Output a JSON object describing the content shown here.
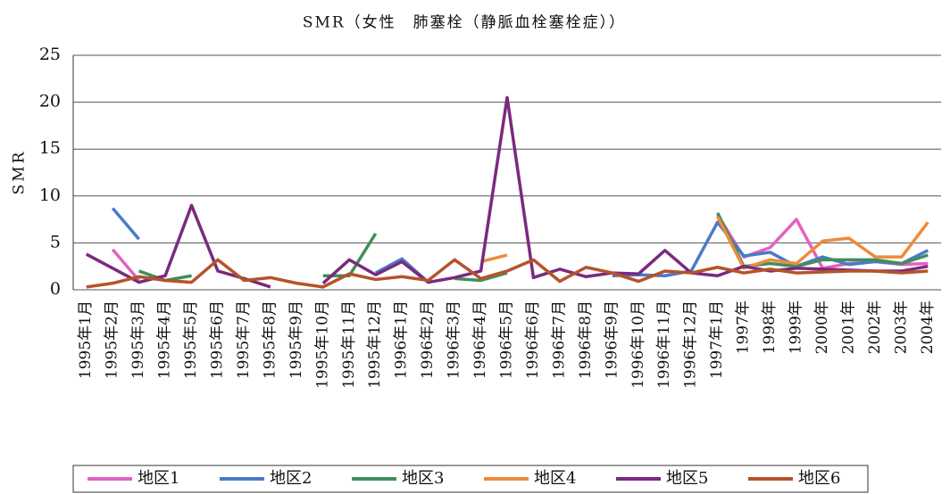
{
  "chart_data": {
    "type": "line",
    "title": "SMR（女性　肺塞栓（静脈血栓塞栓症））",
    "y_label": "SMR",
    "categories": [
      "1995年1月",
      "1995年2月",
      "1995年3月",
      "1995年4月",
      "1995年5月",
      "1995年6月",
      "1995年7月",
      "1995年8月",
      "1995年9月",
      "1995年10月",
      "1995年11月",
      "1995年12月",
      "1996年1月",
      "1996年2月",
      "1996年3月",
      "1996年4月",
      "1996年5月",
      "1996年6月",
      "1996年7月",
      "1996年8月",
      "1996年9月",
      "1996年10月",
      "1996年11月",
      "1996年12月",
      "1997年1月",
      "1997年",
      "1998年",
      "1999年",
      "2000年",
      "2001年",
      "2002年",
      "2003年",
      "2004年"
    ],
    "series": [
      {
        "name": "地区1",
        "color": "#e560c3",
        "values": [
          null,
          4.3,
          1.0,
          null,
          null,
          null,
          null,
          null,
          null,
          null,
          null,
          null,
          null,
          null,
          null,
          null,
          null,
          null,
          null,
          null,
          null,
          null,
          null,
          null,
          8.0,
          3.5,
          4.5,
          7.5,
          2.3,
          2.8,
          3.0,
          2.7,
          2.8
        ]
      },
      {
        "name": "地区2",
        "color": "#4a7ac9",
        "values": [
          null,
          8.7,
          5.4,
          null,
          null,
          null,
          null,
          null,
          null,
          null,
          null,
          1.8,
          3.3,
          0.8,
          null,
          null,
          null,
          null,
          null,
          null,
          1.5,
          1.6,
          1.5,
          2.0,
          7.2,
          3.6,
          4.0,
          2.5,
          3.5,
          2.7,
          3.0,
          2.8,
          4.2
        ]
      },
      {
        "name": "地区3",
        "color": "#3f8f5a",
        "values": [
          null,
          null,
          2.0,
          1.0,
          1.5,
          null,
          null,
          null,
          null,
          1.5,
          1.5,
          6.0,
          null,
          null,
          1.2,
          1.0,
          1.8,
          null,
          null,
          null,
          null,
          null,
          null,
          null,
          8.2,
          2.5,
          2.8,
          2.5,
          3.2,
          3.2,
          3.2,
          2.8,
          3.7
        ]
      },
      {
        "name": "地区4",
        "color": "#f08a3a",
        "values": [
          null,
          null,
          null,
          null,
          null,
          null,
          null,
          null,
          null,
          null,
          null,
          null,
          null,
          null,
          null,
          3.0,
          3.7,
          null,
          null,
          null,
          null,
          null,
          null,
          null,
          7.8,
          2.3,
          3.2,
          2.8,
          5.2,
          5.5,
          3.5,
          3.5,
          7.2
        ]
      },
      {
        "name": "地区5",
        "color": "#7b2a7e",
        "values": [
          3.8,
          2.3,
          0.8,
          1.5,
          9.0,
          2.0,
          1.2,
          0.3,
          null,
          0.7,
          3.2,
          1.6,
          3.0,
          0.8,
          1.3,
          2.0,
          20.5,
          1.3,
          2.2,
          1.4,
          1.8,
          1.7,
          4.2,
          1.8,
          1.5,
          2.5,
          2.0,
          2.3,
          2.2,
          2.1,
          2.0,
          2.0,
          2.5
        ]
      },
      {
        "name": "地区6",
        "color": "#b5532a",
        "values": [
          0.3,
          0.7,
          1.4,
          1.0,
          0.8,
          3.2,
          1.0,
          1.3,
          0.7,
          0.3,
          1.7,
          1.1,
          1.4,
          1.0,
          3.2,
          1.2,
          2.0,
          3.2,
          0.9,
          2.4,
          1.8,
          0.9,
          2.0,
          1.8,
          2.4,
          1.8,
          2.2,
          1.8,
          1.9,
          2.0,
          2.0,
          1.8,
          2.0
        ]
      }
    ],
    "ylim": [
      0,
      25
    ],
    "yticks": [
      0,
      5,
      10,
      15,
      20,
      25
    ],
    "grid": true
  }
}
